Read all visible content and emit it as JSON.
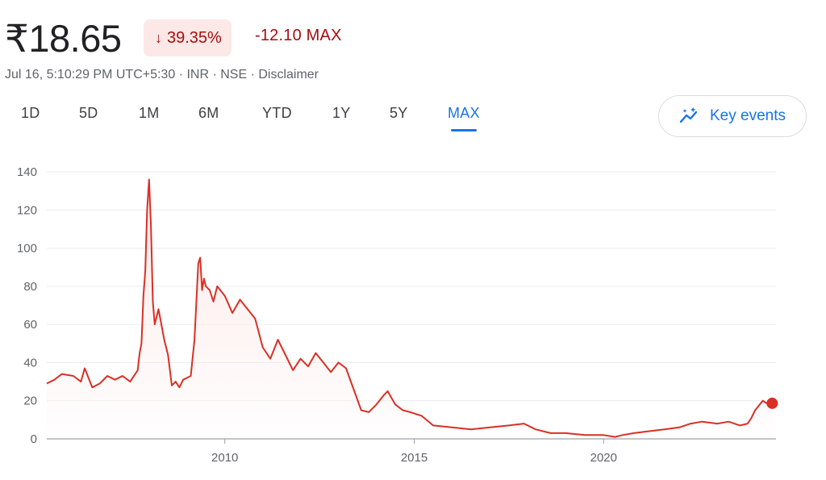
{
  "header": {
    "price": "₹18.65",
    "change_pct": "39.35%",
    "change_abs": "-12.10 MAX",
    "meta": "Jul 16, 5:10:29 PM UTC+5:30 · INR · NSE · Disclaimer"
  },
  "tabs": [
    "1D",
    "5D",
    "1M",
    "6M",
    "YTD",
    "1Y",
    "5Y",
    "MAX"
  ],
  "active_tab": "MAX",
  "key_events": {
    "label": "Key events",
    "icon": "sparkline-trend-icon"
  },
  "colors": {
    "line": "#d93025",
    "fill_top": "#fce8e6",
    "accent": "#1a73e8",
    "negative": "#a50e0e"
  },
  "chart_data": {
    "type": "area",
    "title": "",
    "xlabel": "",
    "ylabel": "",
    "ylim": [
      0,
      140
    ],
    "yticks": [
      0,
      20,
      40,
      60,
      80,
      100,
      120,
      140
    ],
    "xlim": [
      2005.3,
      2024.55
    ],
    "xticks": [
      2010,
      2015,
      2020
    ],
    "grid": "horizontal",
    "series": [
      {
        "x": [
          2005.3,
          2005.5,
          2005.7,
          2006.0,
          2006.2,
          2006.3,
          2006.5,
          2006.7,
          2006.9,
          2007.1,
          2007.3,
          2007.5,
          2007.7,
          2007.75,
          2007.8,
          2007.85,
          2007.9,
          2007.95,
          2008.0,
          2008.05,
          2008.1,
          2008.15,
          2008.25,
          2008.4,
          2008.5,
          2008.6,
          2008.7,
          2008.8,
          2008.9,
          2009.1,
          2009.2,
          2009.3,
          2009.35,
          2009.4,
          2009.45,
          2009.5,
          2009.6,
          2009.7,
          2009.8,
          2010.0,
          2010.2,
          2010.4,
          2010.6,
          2010.8,
          2011.0,
          2011.2,
          2011.4,
          2011.6,
          2011.8,
          2012.0,
          2012.2,
          2012.4,
          2012.6,
          2012.8,
          2013.0,
          2013.2,
          2013.4,
          2013.6,
          2013.8,
          2014.0,
          2014.2,
          2014.3,
          2014.5,
          2014.7,
          2014.9,
          2015.2,
          2015.5,
          2016.0,
          2016.5,
          2017.0,
          2017.5,
          2017.9,
          2018.2,
          2018.6,
          2019.0,
          2019.5,
          2020.0,
          2020.3,
          2020.5,
          2020.8,
          2021.2,
          2021.6,
          2022.0,
          2022.3,
          2022.6,
          2023.0,
          2023.3,
          2023.6,
          2023.8,
          2023.9,
          2024.0,
          2024.2,
          2024.35,
          2024.45
        ],
        "y": [
          29,
          31,
          34,
          33,
          30,
          37,
          27,
          29,
          33,
          31,
          33,
          30,
          36,
          45,
          50,
          75,
          88,
          120,
          136,
          112,
          72,
          60,
          68,
          52,
          44,
          28,
          30,
          27,
          31,
          33,
          52,
          92,
          95,
          78,
          84,
          80,
          78,
          72,
          80,
          75,
          66,
          73,
          68,
          63,
          48,
          42,
          52,
          44,
          36,
          42,
          38,
          45,
          40,
          35,
          40,
          37,
          26,
          15,
          14,
          18,
          23,
          25,
          18,
          15,
          14,
          12,
          7,
          6,
          5,
          6,
          7,
          8,
          5,
          3,
          3,
          2,
          2,
          1,
          2,
          3,
          4,
          5,
          6,
          8,
          9,
          8,
          9,
          7,
          8,
          11,
          15,
          20,
          18,
          18.65
        ]
      }
    ]
  }
}
